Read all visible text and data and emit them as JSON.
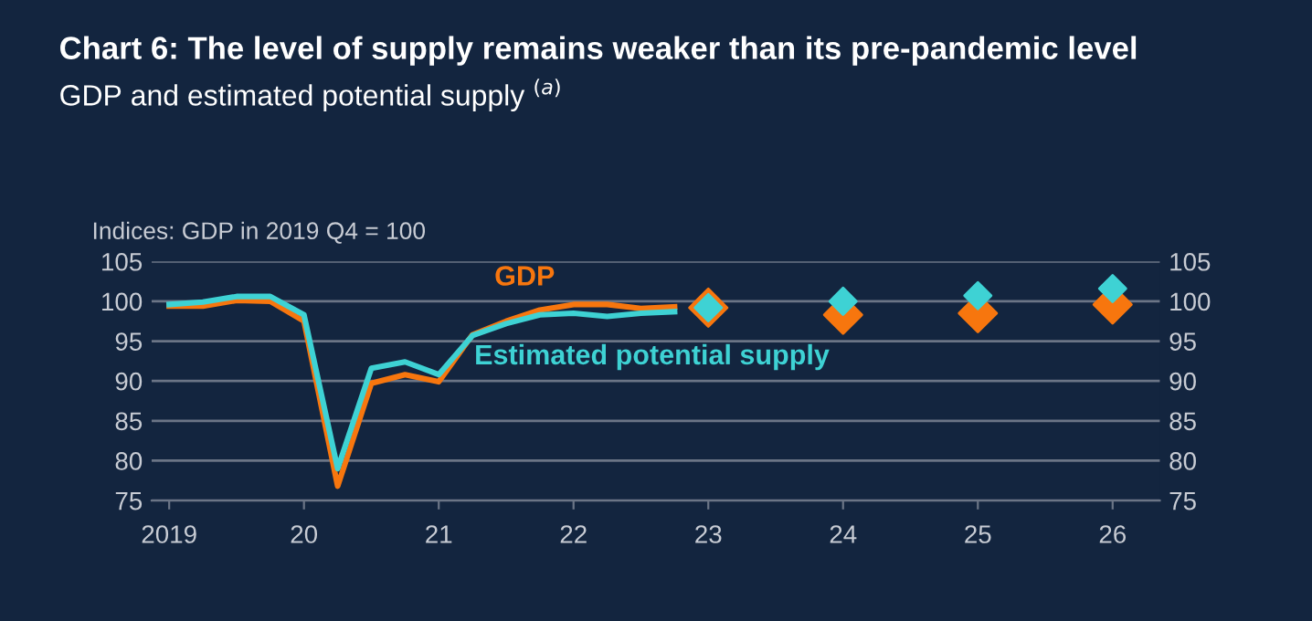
{
  "chart_data": {
    "type": "line",
    "title": "Chart 6: The level of supply remains weaker than its pre-pandemic level",
    "subtitle": "GDP and estimated potential supply $^{(a)}$",
    "ylabel": "Indices: GDP in 2019 Q4 = 100",
    "series": [
      {
        "name": "GDP",
        "color": "#f7760e",
        "x": [
          2019,
          2019.25,
          2019.5,
          2019.75,
          2020,
          2020.25,
          2020.5,
          2020.75,
          2021,
          2021.25,
          2021.5,
          2021.75,
          2022,
          2022.25,
          2022.5,
          2022.75
        ],
        "values": [
          99.4,
          99.4,
          100.1,
          100,
          97.5,
          76.8,
          89.7,
          90.8,
          89.9,
          95.8,
          97.5,
          98.9,
          99.6,
          99.6,
          99.1,
          99.3
        ]
      },
      {
        "name": "Estimated potential supply",
        "color": "#3ed2d4",
        "x": [
          2019,
          2019.25,
          2019.5,
          2019.75,
          2020,
          2020.25,
          2020.5,
          2020.75,
          2021,
          2021.25,
          2021.5,
          2021.75,
          2022,
          2022.25,
          2022.5,
          2022.75
        ],
        "values": [
          99.6,
          99.9,
          100.6,
          100.6,
          98.3,
          79,
          91.6,
          92.4,
          90.8,
          95.7,
          97.2,
          98.3,
          98.5,
          98.1,
          98.5,
          98.7
        ]
      },
      {
        "type": "scatter",
        "marker": "diamond",
        "color": "#f7760e",
        "x": [
          2023,
          2024,
          2025,
          2026
        ],
        "values": [
          99.2,
          98.3,
          98.5,
          99.6
        ]
      },
      {
        "type": "scatter",
        "marker": "diamond",
        "color": "#3ed2d4",
        "x": [
          2023,
          2024,
          2025,
          2026
        ],
        "values": [
          99.2,
          100,
          100.7,
          101.6
        ]
      }
    ],
    "xlim": [
      2018.87,
      2026.35
    ],
    "xticks": [
      2019,
      {
        "value": 2020,
        "label": "20"
      },
      {
        "value": 2021,
        "label": "21"
      },
      {
        "value": 2022,
        "label": "22"
      },
      {
        "value": 2023,
        "label": "23"
      },
      {
        "value": 2024,
        "label": "24"
      },
      {
        "value": 2025,
        "label": "25"
      },
      {
        "value": 2026,
        "label": "26"
      }
    ],
    "ylim": [
      75,
      105
    ],
    "yticks": [
      75,
      80,
      85,
      90,
      95,
      100,
      105
    ],
    "y2lim": [
      75,
      105
    ],
    "y2ticks": [
      75,
      80,
      85,
      90,
      95,
      100,
      105
    ],
    "grid": "y",
    "legend": false
  }
}
